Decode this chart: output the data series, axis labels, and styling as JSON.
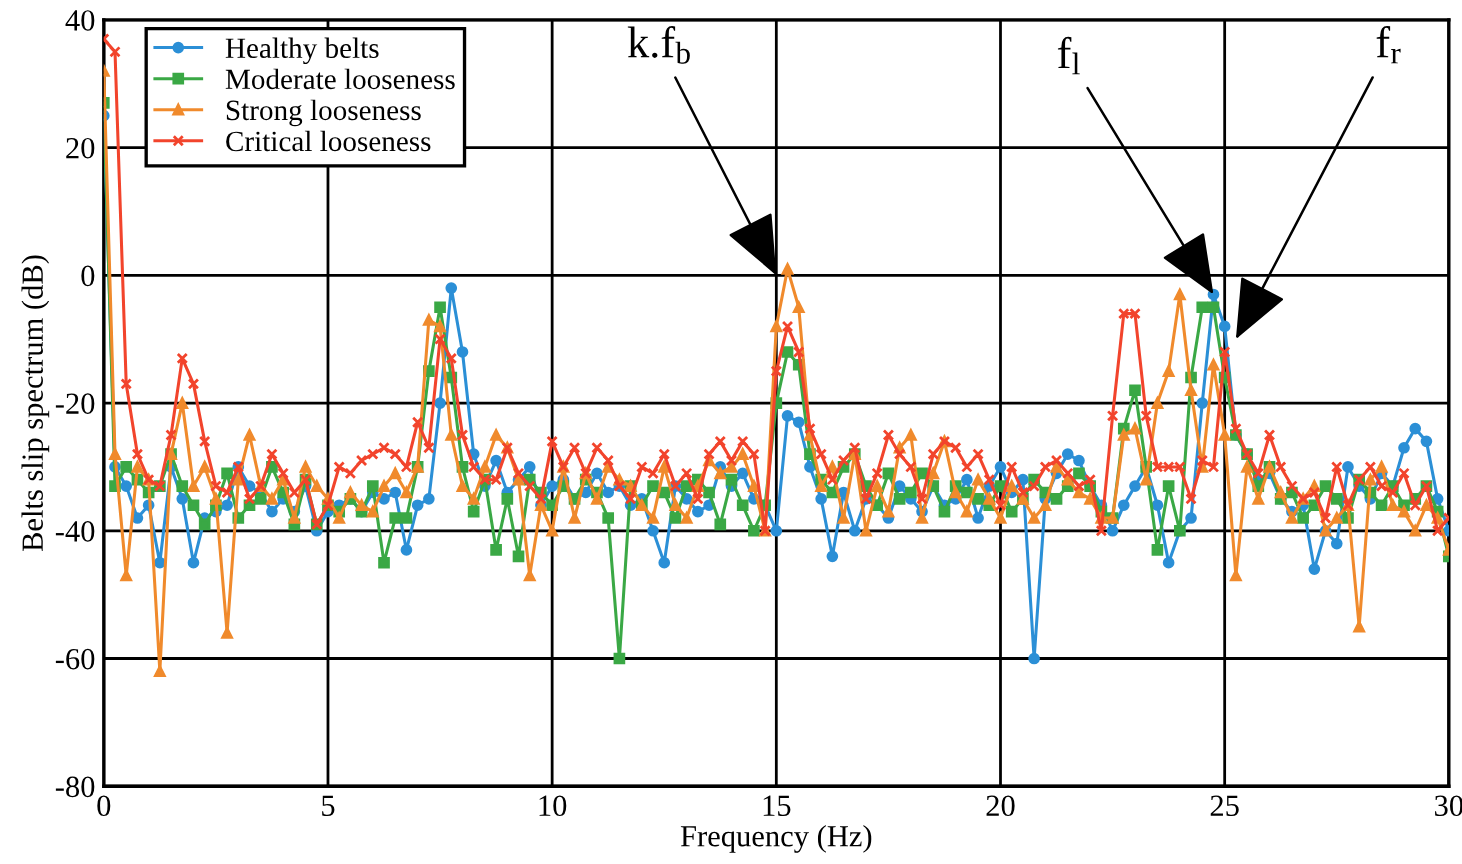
{
  "chart_data": {
    "type": "line",
    "xlabel": "Frequency (Hz)",
    "ylabel": "Belts slip spectrum (dB)",
    "x": [
      0,
      0.25,
      0.5,
      0.75,
      1,
      1.25,
      1.5,
      1.75,
      2,
      2.25,
      2.5,
      2.75,
      3,
      3.25,
      3.5,
      3.75,
      4,
      4.25,
      4.5,
      4.75,
      5,
      5.25,
      5.5,
      5.75,
      6,
      6.25,
      6.5,
      6.75,
      7,
      7.25,
      7.5,
      7.75,
      8,
      8.25,
      8.5,
      8.75,
      9,
      9.25,
      9.5,
      9.75,
      10,
      10.25,
      10.5,
      10.75,
      11,
      11.25,
      11.5,
      11.75,
      12,
      12.25,
      12.5,
      12.75,
      13,
      13.25,
      13.5,
      13.75,
      14,
      14.25,
      14.5,
      14.75,
      15,
      15.25,
      15.5,
      15.75,
      16,
      16.25,
      16.5,
      16.75,
      17,
      17.25,
      17.5,
      17.75,
      18,
      18.25,
      18.5,
      18.75,
      19,
      19.25,
      19.5,
      19.75,
      20,
      20.25,
      20.5,
      20.75,
      21,
      21.25,
      21.5,
      21.75,
      22,
      22.25,
      22.5,
      22.75,
      23,
      23.25,
      23.5,
      23.75,
      24,
      24.25,
      24.5,
      24.75,
      25,
      25.25,
      25.5,
      25.75,
      26,
      26.25,
      26.5,
      26.75,
      27,
      27.25,
      27.5,
      27.75,
      28,
      28.25,
      28.5,
      28.75,
      29,
      29.25,
      29.5,
      29.75,
      30
    ],
    "series": [
      {
        "name": "Healthy belts",
        "color": "#2b8fd6",
        "marker": "circle",
        "values": [
          25,
          -30,
          -33,
          -38,
          -36,
          -45,
          -30,
          -35,
          -45,
          -38,
          -37,
          -36,
          -30,
          -33,
          -34,
          -37,
          -35,
          -37,
          -33,
          -40,
          -37,
          -36,
          -35,
          -37,
          -34,
          -35,
          -34,
          -43,
          -36,
          -35,
          -20,
          -2,
          -12,
          -28,
          -33,
          -29,
          -34,
          -32,
          -30,
          -36,
          -33,
          -32,
          -35,
          -34,
          -31,
          -34,
          -33,
          -36,
          -35,
          -40,
          -45,
          -33,
          -35,
          -37,
          -36,
          -30,
          -33,
          -31,
          -35,
          -36,
          -40,
          -22,
          -23,
          -30,
          -35,
          -44,
          -34,
          -40,
          -35,
          -36,
          -38,
          -33,
          -35,
          -37,
          -33,
          -36,
          -35,
          -32,
          -38,
          -33,
          -30,
          -34,
          -32,
          -60,
          -35,
          -31,
          -28,
          -29,
          -33,
          -36,
          -40,
          -36,
          -33,
          -30,
          -36,
          -45,
          -40,
          -38,
          -20,
          -3,
          -8,
          -25,
          -28,
          -32,
          -31,
          -35,
          -37,
          -36,
          -46,
          -40,
          -42,
          -30,
          -33,
          -35,
          -31,
          -33,
          -27,
          -24,
          -26,
          -35,
          -40
        ]
      },
      {
        "name": "Moderate looseness",
        "color": "#3aa845",
        "marker": "square",
        "values": [
          27,
          -33,
          -30,
          -32,
          -34,
          -33,
          -28,
          -33,
          -36,
          -39,
          -36,
          -31,
          -38,
          -36,
          -35,
          -30,
          -34,
          -39,
          -32,
          -39,
          -36,
          -37,
          -35,
          -37,
          -33,
          -45,
          -38,
          -38,
          -30,
          -15,
          -5,
          -16,
          -30,
          -37,
          -32,
          -43,
          -35,
          -44,
          -32,
          -34,
          -36,
          -33,
          -35,
          -32,
          -34,
          -38,
          -60,
          -33,
          -36,
          -33,
          -34,
          -38,
          -33,
          -32,
          -34,
          -39,
          -32,
          -36,
          -40,
          -36,
          -20,
          -12,
          -14,
          -28,
          -32,
          -34,
          -30,
          -28,
          -33,
          -36,
          -31,
          -35,
          -34,
          -31,
          -33,
          -37,
          -33,
          -34,
          -35,
          -36,
          -33,
          -37,
          -35,
          -32,
          -34,
          -35,
          -33,
          -31,
          -33,
          -37,
          -38,
          -24,
          -18,
          -30,
          -43,
          -33,
          -40,
          -16,
          -5,
          -5,
          -16,
          -25,
          -28,
          -33,
          -30,
          -35,
          -34,
          -38,
          -36,
          -33,
          -35,
          -38,
          -32,
          -34,
          -36,
          -33,
          -36,
          -35,
          -33,
          -37,
          -44
        ]
      },
      {
        "name": "Strong looseness",
        "color": "#f08a2c",
        "marker": "triangle",
        "values": [
          32,
          -28,
          -47,
          -30,
          -32,
          -62,
          -28,
          -20,
          -33,
          -30,
          -35,
          -56,
          -32,
          -25,
          -33,
          -35,
          -32,
          -38,
          -30,
          -33,
          -35,
          -38,
          -34,
          -36,
          -37,
          -33,
          -31,
          -34,
          -30,
          -7,
          -8,
          -25,
          -33,
          -35,
          -30,
          -25,
          -27,
          -32,
          -47,
          -36,
          -40,
          -30,
          -38,
          -31,
          -35,
          -30,
          -32,
          -33,
          -36,
          -38,
          -30,
          -36,
          -38,
          -33,
          -29,
          -31,
          -30,
          -28,
          -33,
          -40,
          -8,
          1,
          -5,
          -25,
          -33,
          -30,
          -38,
          -28,
          -40,
          -33,
          -37,
          -27,
          -25,
          -38,
          -31,
          -26,
          -34,
          -37,
          -32,
          -35,
          -38,
          -33,
          -35,
          -38,
          -36,
          -30,
          -32,
          -34,
          -35,
          -38,
          -38,
          -25,
          -24,
          -32,
          -20,
          -15,
          -3,
          -18,
          -30,
          -14,
          -25,
          -47,
          -30,
          -35,
          -30,
          -34,
          -38,
          -35,
          -33,
          -40,
          -38,
          -36,
          -55,
          -32,
          -30,
          -36,
          -37,
          -40,
          -36,
          -38,
          -43
        ]
      },
      {
        "name": "Critical looseness",
        "color": "#f2442c",
        "marker": "cross",
        "values": [
          37,
          35,
          -17,
          -28,
          -32,
          -33,
          -25,
          -13,
          -17,
          -26,
          -33,
          -34,
          -30,
          -35,
          -33,
          -28,
          -31,
          -34,
          -32,
          -39,
          -36,
          -30,
          -31,
          -29,
          -28,
          -27,
          -28,
          -30,
          -23,
          -27,
          -10,
          -13,
          -25,
          -30,
          -32,
          -32,
          -27,
          -31,
          -33,
          -35,
          -26,
          -30,
          -27,
          -31,
          -27,
          -29,
          -33,
          -35,
          -30,
          -31,
          -28,
          -33,
          -31,
          -35,
          -28,
          -26,
          -29,
          -26,
          -28,
          -40,
          -15,
          -8,
          -12,
          -24,
          -28,
          -32,
          -29,
          -27,
          -35,
          -31,
          -25,
          -28,
          -30,
          -35,
          -28,
          -26,
          -27,
          -30,
          -28,
          -32,
          -36,
          -30,
          -34,
          -33,
          -30,
          -29,
          -31,
          -33,
          -32,
          -40,
          -22,
          -6,
          -6,
          -22,
          -30,
          -30,
          -30,
          -35,
          -29,
          -30,
          -12,
          -24,
          -28,
          -31,
          -25,
          -30,
          -33,
          -35,
          -34,
          -38,
          -30,
          -36,
          -32,
          -30,
          -33,
          -34,
          -31,
          -36,
          -33,
          -40,
          -38
        ]
      }
    ],
    "xlim": [
      0,
      30
    ],
    "xticks": [
      0,
      5,
      10,
      15,
      20,
      25,
      30
    ],
    "ylim": [
      -80,
      40
    ],
    "yticks": [
      -80,
      -60,
      -40,
      -20,
      0,
      20,
      40
    ],
    "grid": true,
    "legend": "top left",
    "line_style": "solid",
    "annotations": [
      {
        "text": "k.f$_{b}$",
        "x": 15,
        "y": 0
      },
      {
        "text": "f$_{l}$",
        "x": 24.75,
        "y": -3
      },
      {
        "text": "f$_{r}$",
        "x": 25.25,
        "y": -10
      }
    ]
  }
}
